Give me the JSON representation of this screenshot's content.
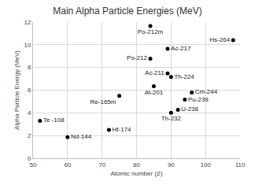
{
  "chart_data": {
    "type": "scatter",
    "title": "Main Alpha Particle Energies (MeV)",
    "x_label": "Atomic number (Z)",
    "y_label": "Alpha Particle Energy (MeV)",
    "labels": [
      "Te -108",
      "Nd-144",
      "Hf-174",
      "Re-165m",
      "Po-212m",
      "Po-212",
      "At-201",
      "Ac-217",
      "Ac-211",
      "Th-224",
      "Th-232",
      "U-238",
      "Pu-239",
      "Cm-244",
      "Hs-264"
    ],
    "x": [
      52,
      60,
      72,
      75,
      84,
      84,
      85,
      89,
      89,
      90,
      90,
      92,
      94,
      96,
      108
    ],
    "values": [
      3.3,
      1.85,
      2.5,
      5.5,
      11.65,
      8.78,
      6.34,
      9.65,
      7.48,
      7.17,
      4.01,
      4.27,
      5.16,
      5.8,
      10.4
    ],
    "color": "#000000",
    "marker": "circle",
    "xlim": [
      50,
      110
    ],
    "xticks": [
      50,
      60,
      70,
      80,
      90,
      100,
      110
    ],
    "ylim": [
      0,
      12
    ],
    "yticks": [
      0,
      2,
      4,
      6,
      8,
      10,
      12
    ],
    "grid": true
  }
}
